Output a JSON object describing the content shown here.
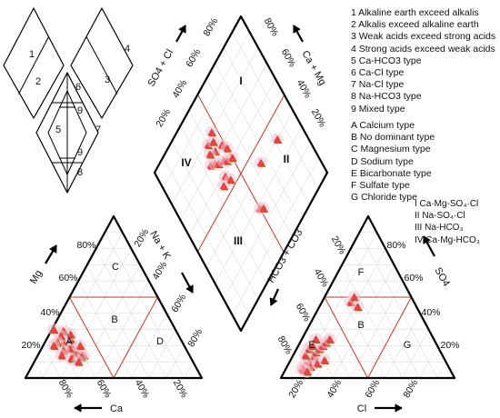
{
  "legend_numbers": [
    "1 Alkaline earth exceed alkalis",
    "2 Alkalis exceed alkaline earth",
    "3 Weak acids exceed strong acids",
    "4 Strong acids exceed weak acids",
    "5 Ca-HCO3 type",
    "6 Ca-Cl type",
    "7 Na-Cl type",
    "8 Na-HCO3 type",
    "9 Mixed type"
  ],
  "legend_letters": [
    "A Calcium type",
    "B No dominant type",
    "C Magnesium type",
    "D Sodium type",
    "E Bicarbonate type",
    "F Sulfate type",
    "G Chloride type"
  ],
  "legend_roman": [
    "I  Ca·Mg-SO₄·Cl",
    "II  Na-SO₄·Cl",
    "III  Na-HCO₃",
    "IV  Ca·Mg-HCO₃"
  ],
  "key_regions": [
    "1",
    "2",
    "3",
    "4",
    "6",
    "9",
    "5",
    "7",
    "9",
    "8"
  ],
  "diamond": {
    "roman_labels": [
      "I",
      "II",
      "III",
      "IV"
    ],
    "axis_so4_cl": "SO4 + Cl",
    "axis_ca_mg": "Ca + Mg",
    "axis_na_k": "Na + K",
    "axis_hco3_co3": "HCO3 + CO3",
    "ticks_left": [
      "80%",
      "60%",
      "40%",
      "20%"
    ],
    "ticks_right": [
      "80%",
      "60%",
      "40%",
      "20%"
    ]
  },
  "cation": {
    "axis_mg": "Mg",
    "axis_ca": "Ca",
    "region_labels": [
      "A",
      "B",
      "C",
      "D"
    ],
    "ticks_left": [
      "80%",
      "60%",
      "40%",
      "20%"
    ],
    "ticks_right": [
      "20%",
      "40%",
      "60%",
      "80%"
    ],
    "ticks_bottom": [
      "80%",
      "60%",
      "40%",
      "20%"
    ]
  },
  "anion": {
    "axis_so4": "SO4",
    "axis_cl": "Cl",
    "region_labels": [
      "E",
      "B",
      "F",
      "G"
    ],
    "ticks_left": [
      "20%",
      "40%",
      "60%",
      "80%"
    ],
    "ticks_right": [
      "80%",
      "60%",
      "40%",
      "20%"
    ],
    "ticks_bottom": [
      "20%",
      "40%",
      "60%",
      "80%"
    ]
  },
  "colors": {
    "outline": "#000000",
    "dividers": "#c0392b",
    "grid": "#dddddd",
    "marker_fill": "#e8414b",
    "marker_shadow": "#8d6e1f",
    "halo": "#f4c6d2"
  },
  "samples_cation": [
    [
      20,
      12
    ],
    [
      22,
      14
    ],
    [
      24,
      11
    ],
    [
      26,
      15
    ],
    [
      28,
      18
    ],
    [
      30,
      13
    ],
    [
      32,
      16
    ],
    [
      35,
      20
    ],
    [
      25,
      22
    ],
    [
      18,
      18
    ],
    [
      22,
      25
    ],
    [
      28,
      27
    ],
    [
      34,
      24
    ],
    [
      38,
      28
    ],
    [
      40,
      15
    ],
    [
      42,
      20
    ],
    [
      45,
      12
    ],
    [
      48,
      18
    ],
    [
      36,
      10
    ],
    [
      30,
      8
    ]
  ],
  "samples_anion": [
    [
      8,
      4
    ],
    [
      10,
      6
    ],
    [
      12,
      8
    ],
    [
      14,
      10
    ],
    [
      15,
      12
    ],
    [
      16,
      14
    ],
    [
      18,
      16
    ],
    [
      20,
      18
    ],
    [
      22,
      20
    ],
    [
      24,
      22
    ],
    [
      13,
      5
    ],
    [
      17,
      7
    ],
    [
      21,
      9
    ],
    [
      10,
      12
    ],
    [
      12,
      16
    ],
    [
      14,
      18
    ],
    [
      16,
      22
    ],
    [
      36,
      45
    ],
    [
      38,
      48
    ],
    [
      40,
      42
    ],
    [
      9,
      3
    ],
    [
      11,
      2
    ]
  ],
  "samples_diamond": [
    [
      30,
      35
    ],
    [
      32,
      38
    ],
    [
      34,
      40
    ],
    [
      28,
      42
    ],
    [
      26,
      38
    ],
    [
      36,
      44
    ],
    [
      38,
      46
    ],
    [
      30,
      48
    ],
    [
      22,
      40
    ],
    [
      24,
      44
    ],
    [
      34,
      50
    ],
    [
      40,
      50
    ],
    [
      20,
      46
    ],
    [
      42,
      40
    ],
    [
      44,
      36
    ],
    [
      46,
      42
    ],
    [
      72,
      50
    ],
    [
      74,
      52
    ],
    [
      60,
      82
    ],
    [
      58,
      65
    ]
  ]
}
